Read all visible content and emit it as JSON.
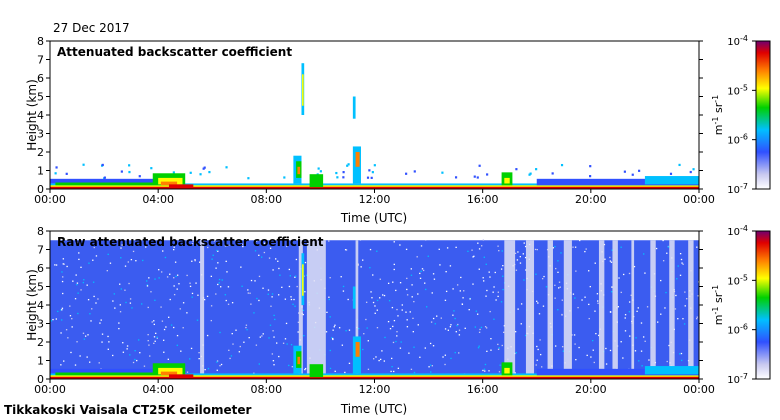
{
  "date": "27 Dec 2017",
  "footer": "Tikkakoski Vaisala CT25K ceilometer",
  "chart_data": [
    {
      "type": "heatmap",
      "title": "Attenuated backscatter coefficient",
      "xlabel": "Time (UTC)",
      "ylabel": "Height (km)",
      "x_ticks": [
        "00:00",
        "04:00",
        "08:00",
        "12:00",
        "16:00",
        "20:00",
        "00:00"
      ],
      "y_ticks": [
        0,
        1,
        2,
        3,
        4,
        5,
        6,
        7,
        8
      ],
      "xlim_hours": [
        0,
        24
      ],
      "ylim_km": [
        0,
        8
      ],
      "colorbar": {
        "scale": "log",
        "ticks": [
          "10-7",
          "10-6",
          "10-5",
          "10-4"
        ],
        "unit": "m-1 sr-1",
        "range": [
          1e-07,
          0.0001
        ]
      }
    },
    {
      "type": "heatmap",
      "title": "Raw attenuated backscatter coefficient",
      "xlabel": "Time (UTC)",
      "ylabel": "Height (km)",
      "x_ticks": [
        "00:00",
        "04:00",
        "08:00",
        "12:00",
        "16:00",
        "20:00",
        "00:00"
      ],
      "y_ticks": [
        0,
        1,
        2,
        3,
        4,
        5,
        6,
        7,
        8
      ],
      "xlim_hours": [
        0,
        24
      ],
      "ylim_km": [
        0,
        8
      ],
      "colorbar": {
        "scale": "log",
        "ticks": [
          "10-7",
          "10-6",
          "10-5",
          "10-4"
        ],
        "unit": "m-1 sr-1",
        "range": [
          1e-07,
          0.0001
        ]
      }
    }
  ]
}
